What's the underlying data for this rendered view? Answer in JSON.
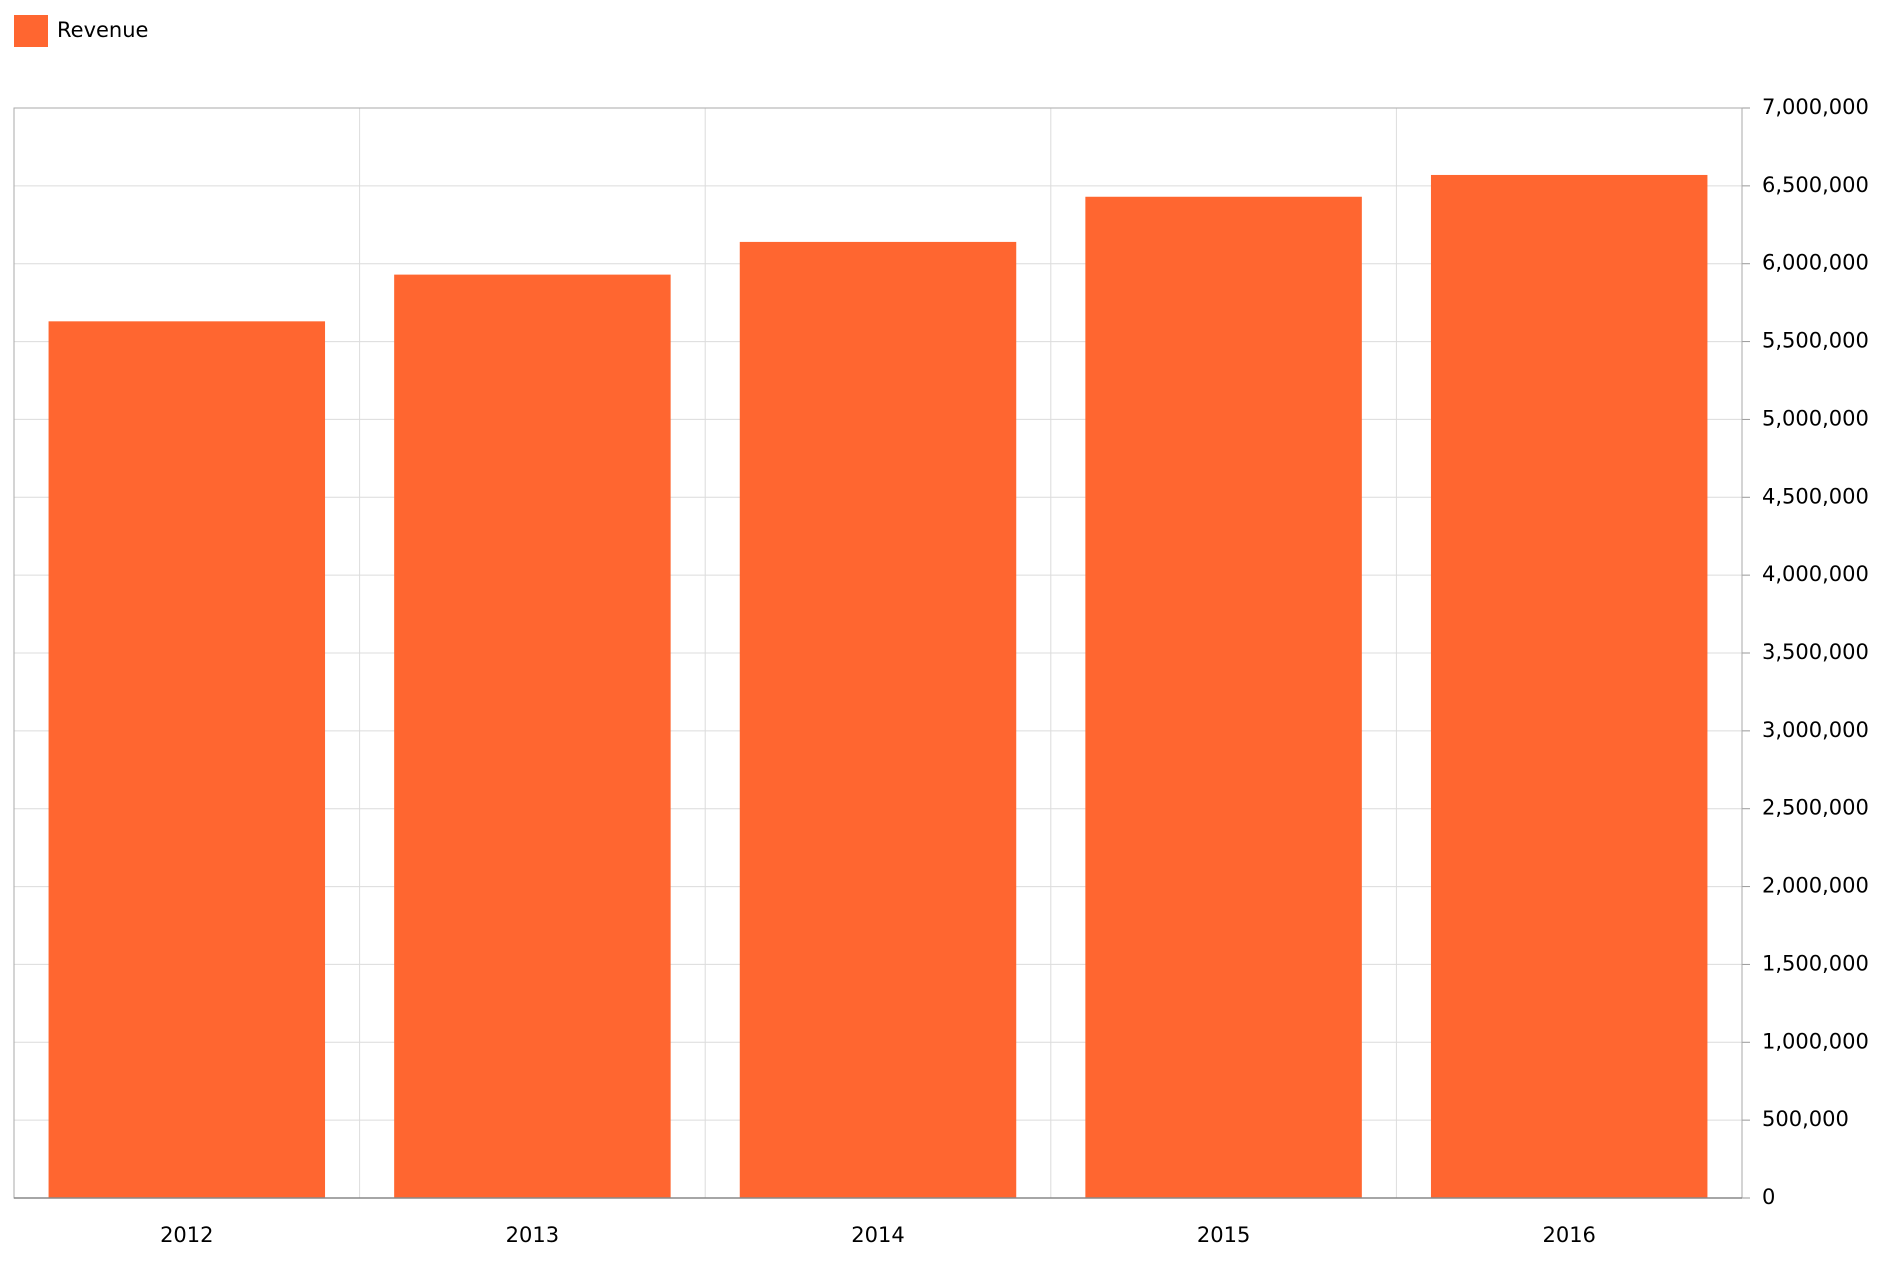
{
  "chart_data": {
    "type": "bar",
    "categories": [
      "2012",
      "2013",
      "2014",
      "2015",
      "2016"
    ],
    "series": [
      {
        "name": "Revenue",
        "color": "#ff6630",
        "values": [
          5630000,
          5930000,
          6140000,
          6430000,
          6570000
        ]
      }
    ],
    "ylim": [
      0,
      7000000
    ],
    "yticks": [
      0,
      {
        "value": 500000,
        "label": "500,000"
      },
      {
        "value": 1000000,
        "label": "1,000,000"
      },
      {
        "value": 1500000,
        "label": "1,500,000"
      },
      {
        "value": 2000000,
        "label": "2,000,000"
      },
      {
        "value": 2500000,
        "label": "2,500,000"
      },
      {
        "value": 3000000,
        "label": "3,000,000"
      },
      {
        "value": 3500000,
        "label": "3,500,000"
      },
      {
        "value": 4000000,
        "label": "4,000,000"
      },
      {
        "value": 4500000,
        "label": "4,500,000"
      },
      {
        "value": 5000000,
        "label": "5,000,000"
      },
      {
        "value": 5500000,
        "label": "5,500,000"
      },
      {
        "value": 6000000,
        "label": "6,000,000"
      },
      {
        "value": 6500000,
        "label": "6,500,000"
      },
      {
        "value": 7000000,
        "label": "7,000,000"
      }
    ],
    "grid": true,
    "legend": "top-left"
  }
}
